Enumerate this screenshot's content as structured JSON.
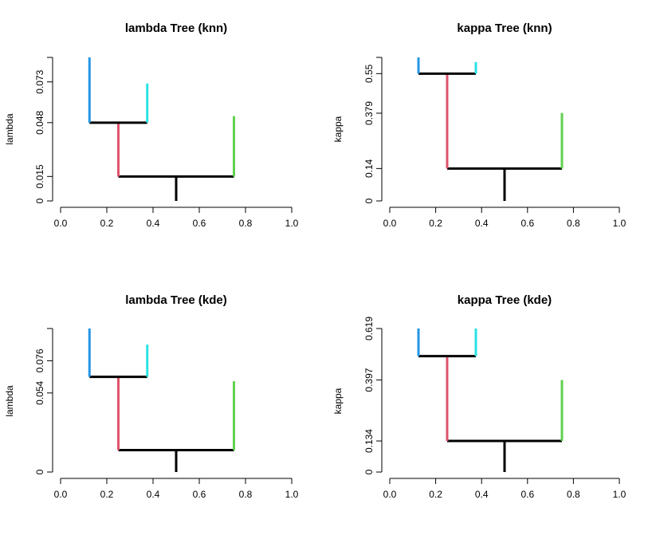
{
  "chart_data": [
    {
      "type": "tree",
      "title": "lambda Tree (knn)",
      "ylabel": "lambda",
      "xlim": [
        0,
        1
      ],
      "ylim": [
        0,
        0.088
      ],
      "x_ticks": [
        "0.0",
        "0.2",
        "0.4",
        "0.6",
        "0.8",
        "1.0"
      ],
      "y_ticks": [
        {
          "value": 0,
          "label": "0"
        },
        {
          "value": 0.015,
          "label": "0.015"
        },
        {
          "value": 0.048,
          "label": "0.048"
        },
        {
          "value": 0.073,
          "label": "0.073"
        }
      ],
      "branches": [
        {
          "color": "#000000",
          "x": 0.5,
          "y0": 0,
          "y1": 0.015
        },
        {
          "color": "#000000",
          "x0": 0.25,
          "x1": 0.75,
          "y": 0.015
        },
        {
          "color": "#DF536B",
          "x": 0.25,
          "y0": 0.015,
          "y1": 0.048
        },
        {
          "color": "#61D04F",
          "x": 0.75,
          "y0": 0.015,
          "y1": 0.052
        },
        {
          "color": "#000000",
          "x0": 0.125,
          "x1": 0.375,
          "y": 0.048
        },
        {
          "color": "#2297E6",
          "x": 0.125,
          "y0": 0.048,
          "y1": 0.088
        },
        {
          "color": "#28E2E5",
          "x": 0.375,
          "y0": 0.048,
          "y1": 0.072
        }
      ]
    },
    {
      "type": "tree",
      "title": "kappa Tree (knn)",
      "ylabel": "kappa",
      "xlim": [
        0,
        1
      ],
      "ylim": [
        0,
        0.62
      ],
      "x_ticks": [
        "0.0",
        "0.2",
        "0.4",
        "0.6",
        "0.8",
        "1.0"
      ],
      "y_ticks": [
        {
          "value": 0,
          "label": "0"
        },
        {
          "value": 0.14,
          "label": "0.14"
        },
        {
          "value": 0.379,
          "label": "0.379"
        },
        {
          "value": 0.55,
          "label": "0.55"
        }
      ],
      "branches": [
        {
          "color": "#000000",
          "x": 0.5,
          "y0": 0,
          "y1": 0.14
        },
        {
          "color": "#000000",
          "x0": 0.25,
          "x1": 0.75,
          "y": 0.14
        },
        {
          "color": "#DF536B",
          "x": 0.25,
          "y0": 0.14,
          "y1": 0.55
        },
        {
          "color": "#61D04F",
          "x": 0.75,
          "y0": 0.14,
          "y1": 0.38
        },
        {
          "color": "#000000",
          "x0": 0.125,
          "x1": 0.375,
          "y": 0.55
        },
        {
          "color": "#2297E6",
          "x": 0.125,
          "y0": 0.55,
          "y1": 0.62
        },
        {
          "color": "#28E2E5",
          "x": 0.375,
          "y0": 0.55,
          "y1": 0.6
        }
      ]
    },
    {
      "type": "tree",
      "title": "lambda Tree (kde)",
      "ylabel": "lambda",
      "xlim": [
        0,
        1
      ],
      "ylim": [
        0,
        0.098
      ],
      "x_ticks": [
        "0.0",
        "0.2",
        "0.4",
        "0.6",
        "0.8",
        "1.0"
      ],
      "y_ticks": [
        {
          "value": 0,
          "label": "0"
        },
        {
          "value": 0.054,
          "label": "0.054"
        },
        {
          "value": 0.076,
          "label": "0.076"
        }
      ],
      "branches": [
        {
          "color": "#000000",
          "x": 0.5,
          "y0": 0,
          "y1": 0.015
        },
        {
          "color": "#000000",
          "x0": 0.25,
          "x1": 0.75,
          "y": 0.015
        },
        {
          "color": "#DF536B",
          "x": 0.25,
          "y0": 0.015,
          "y1": 0.065
        },
        {
          "color": "#61D04F",
          "x": 0.75,
          "y0": 0.015,
          "y1": 0.062
        },
        {
          "color": "#000000",
          "x0": 0.125,
          "x1": 0.375,
          "y": 0.065
        },
        {
          "color": "#2297E6",
          "x": 0.125,
          "y0": 0.065,
          "y1": 0.098
        },
        {
          "color": "#28E2E5",
          "x": 0.375,
          "y0": 0.065,
          "y1": 0.087
        }
      ]
    },
    {
      "type": "tree",
      "title": "kappa Tree (kde)",
      "ylabel": "kappa",
      "xlim": [
        0,
        1
      ],
      "ylim": [
        0,
        0.619
      ],
      "x_ticks": [
        "0.0",
        "0.2",
        "0.4",
        "0.6",
        "0.8",
        "1.0"
      ],
      "y_ticks": [
        {
          "value": 0,
          "label": "0"
        },
        {
          "value": 0.134,
          "label": "0.134"
        },
        {
          "value": 0.397,
          "label": "0.397"
        },
        {
          "value": 0.619,
          "label": "0.619"
        }
      ],
      "branches": [
        {
          "color": "#000000",
          "x": 0.5,
          "y0": 0,
          "y1": 0.134
        },
        {
          "color": "#000000",
          "x0": 0.25,
          "x1": 0.75,
          "y": 0.134
        },
        {
          "color": "#DF536B",
          "x": 0.25,
          "y0": 0.134,
          "y1": 0.5
        },
        {
          "color": "#61D04F",
          "x": 0.75,
          "y0": 0.134,
          "y1": 0.397
        },
        {
          "color": "#000000",
          "x0": 0.125,
          "x1": 0.375,
          "y": 0.5
        },
        {
          "color": "#2297E6",
          "x": 0.125,
          "y0": 0.5,
          "y1": 0.619
        },
        {
          "color": "#28E2E5",
          "x": 0.375,
          "y0": 0.5,
          "y1": 0.619
        }
      ]
    }
  ]
}
